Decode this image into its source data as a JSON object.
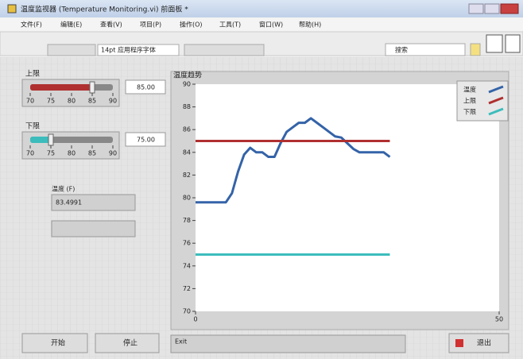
{
  "window": {
    "title": "温度监视器 (Temperature Monitoring.vi) 前面板 *",
    "menu": [
      "文件(F)",
      "编辑(E)",
      "查看(V)",
      "项目(P)",
      "操作(O)",
      "工具(T)",
      "窗口(W)",
      "帮助(H)"
    ],
    "font": "14pt 应用程序字体",
    "search": "搜索"
  },
  "controls": {
    "upper": {
      "label": "上限",
      "value": 85,
      "display": "85.00",
      "ticks": [
        70,
        75,
        80,
        85,
        90
      ]
    },
    "lower": {
      "label": "下限",
      "value": 75,
      "display": "75.00",
      "ticks": [
        70,
        75,
        80,
        85,
        90
      ]
    },
    "temperature": {
      "label": "温度 (F)",
      "display": "83.4991"
    }
  },
  "buttons": {
    "start": "开始",
    "stop": "停止",
    "exit": "退出"
  },
  "status": "Exit",
  "chart_data": {
    "type": "line",
    "title": "温度趋势",
    "x": [
      0,
      1,
      2,
      3,
      4,
      5,
      6,
      7,
      8,
      9,
      10,
      11,
      12,
      13,
      14,
      15,
      16,
      17,
      18,
      19,
      20,
      21,
      22,
      23,
      24,
      25,
      26,
      27,
      28,
      29,
      30,
      31,
      32
    ],
    "series": [
      {
        "name": "温度",
        "color": "#3463a8",
        "values": [
          79.6,
          79.6,
          79.6,
          79.6,
          79.6,
          79.6,
          80.4,
          82.3,
          83.8,
          84.4,
          84.0,
          84.0,
          83.6,
          83.6,
          84.8,
          85.8,
          86.2,
          86.6,
          86.6,
          87.0,
          86.6,
          86.2,
          85.8,
          85.4,
          85.3,
          84.8,
          84.3,
          84.0,
          84.0,
          84.0,
          84.0,
          84.0,
          83.6
        ]
      },
      {
        "name": "上限",
        "color": "#b03030",
        "values": [
          85,
          85,
          85,
          85,
          85,
          85,
          85,
          85,
          85,
          85,
          85,
          85,
          85,
          85,
          85,
          85,
          85,
          85,
          85,
          85,
          85,
          85,
          85,
          85,
          85,
          85,
          85,
          85,
          85,
          85,
          85,
          85,
          85
        ]
      },
      {
        "name": "下限",
        "color": "#3cbcbc",
        "values": [
          75,
          75,
          75,
          75,
          75,
          75,
          75,
          75,
          75,
          75,
          75,
          75,
          75,
          75,
          75,
          75,
          75,
          75,
          75,
          75,
          75,
          75,
          75,
          75,
          75,
          75,
          75,
          75,
          75,
          75,
          75,
          75,
          75
        ]
      }
    ],
    "xlim": [
      0,
      50
    ],
    "xticks": [
      0,
      50
    ],
    "ylim": [
      70,
      90
    ],
    "yticks": [
      70,
      72,
      74,
      76,
      78,
      80,
      82,
      84,
      86,
      88,
      90
    ],
    "legend": "upper right"
  }
}
